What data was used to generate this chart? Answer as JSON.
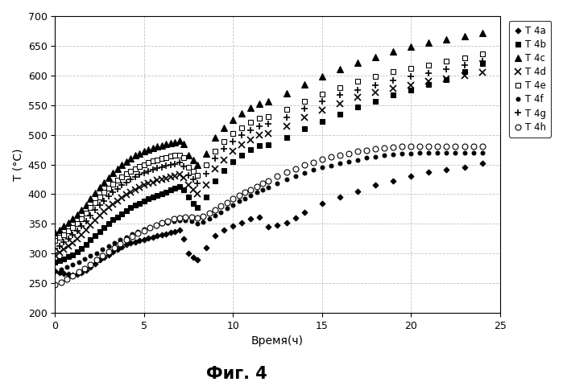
{
  "title": "Фиг. 4",
  "xlabel": "Время(ч)",
  "ylabel": "T (°C)",
  "xlim": [
    0,
    25
  ],
  "ylim": [
    200,
    700
  ],
  "xticks": [
    0,
    5,
    10,
    15,
    20,
    25
  ],
  "yticks": [
    200,
    250,
    300,
    350,
    400,
    450,
    500,
    550,
    600,
    650,
    700
  ],
  "marker_configs": {
    "T 4a": {
      "marker": "D",
      "ms": 3.5,
      "mfc": "black",
      "mec": "black",
      "mew": 0.8
    },
    "T 4b": {
      "marker": "s",
      "ms": 4.5,
      "mfc": "black",
      "mec": "black",
      "mew": 0.8
    },
    "T 4c": {
      "marker": "^",
      "ms": 5.5,
      "mfc": "black",
      "mec": "black",
      "mew": 0.8
    },
    "T 4d": {
      "marker": "x",
      "ms": 5.5,
      "mfc": "black",
      "mec": "black",
      "mew": 1.2
    },
    "T 4e": {
      "marker": "s",
      "ms": 4.5,
      "mfc": "white",
      "mec": "black",
      "mew": 0.8
    },
    "T 4f": {
      "marker": "o",
      "ms": 3.5,
      "mfc": "black",
      "mec": "black",
      "mew": 0.8
    },
    "T 4g": {
      "marker": "+",
      "ms": 6,
      "mfc": "black",
      "mec": "black",
      "mew": 1.2
    },
    "T 4h": {
      "marker": "o",
      "ms": 5,
      "mfc": "white",
      "mec": "black",
      "mew": 0.8
    }
  },
  "series": {
    "T 4a": {
      "data_x": [
        0.0,
        0.25,
        0.5,
        0.75,
        1.0,
        1.25,
        1.5,
        1.75,
        2.0,
        2.25,
        2.5,
        2.75,
        3.0,
        3.25,
        3.5,
        3.75,
        4.0,
        4.25,
        4.5,
        4.75,
        5.0,
        5.25,
        5.5,
        5.75,
        6.0,
        6.25,
        6.5,
        6.75,
        7.0,
        7.25,
        7.5,
        7.75,
        8.0,
        8.5,
        9.0,
        9.5,
        10.0,
        10.5,
        11.0,
        11.5,
        12.0,
        12.5,
        13.0,
        13.5,
        14.0,
        15.0,
        16.0,
        17.0,
        18.0,
        19.0,
        20.0,
        21.0,
        22.0,
        23.0,
        24.0
      ],
      "data_y": [
        270,
        268,
        267,
        265,
        264,
        265,
        268,
        272,
        278,
        283,
        289,
        294,
        298,
        303,
        307,
        311,
        315,
        318,
        320,
        322,
        324,
        326,
        328,
        330,
        331,
        333,
        335,
        337,
        340,
        325,
        300,
        293,
        290,
        310,
        330,
        340,
        347,
        352,
        358,
        362,
        345,
        348,
        352,
        360,
        370,
        385,
        395,
        405,
        415,
        422,
        430,
        437,
        441,
        446,
        452
      ]
    },
    "T 4b": {
      "data_x": [
        0.0,
        0.25,
        0.5,
        0.75,
        1.0,
        1.25,
        1.5,
        1.75,
        2.0,
        2.25,
        2.5,
        2.75,
        3.0,
        3.25,
        3.5,
        3.75,
        4.0,
        4.25,
        4.5,
        4.75,
        5.0,
        5.25,
        5.5,
        5.75,
        6.0,
        6.25,
        6.5,
        6.75,
        7.0,
        7.25,
        7.5,
        7.75,
        8.0,
        8.5,
        9.0,
        9.5,
        10.0,
        10.5,
        11.0,
        11.5,
        12.0,
        13.0,
        14.0,
        15.0,
        16.0,
        17.0,
        18.0,
        19.0,
        20.0,
        21.0,
        22.0,
        23.0,
        24.0
      ],
      "data_y": [
        285,
        288,
        291,
        295,
        298,
        303,
        308,
        315,
        323,
        330,
        337,
        344,
        351,
        357,
        362,
        367,
        372,
        377,
        381,
        385,
        388,
        392,
        395,
        398,
        401,
        404,
        407,
        410,
        413,
        408,
        395,
        385,
        378,
        395,
        422,
        440,
        455,
        465,
        475,
        482,
        483,
        495,
        510,
        522,
        535,
        547,
        557,
        567,
        576,
        585,
        593,
        606,
        620
      ]
    },
    "T 4c": {
      "data_x": [
        0.0,
        0.25,
        0.5,
        0.75,
        1.0,
        1.25,
        1.5,
        1.75,
        2.0,
        2.25,
        2.5,
        2.75,
        3.0,
        3.25,
        3.5,
        3.75,
        4.0,
        4.25,
        4.5,
        4.75,
        5.0,
        5.25,
        5.5,
        5.75,
        6.0,
        6.25,
        6.5,
        6.75,
        7.0,
        7.25,
        7.5,
        7.75,
        8.0,
        8.5,
        9.0,
        9.5,
        10.0,
        10.5,
        11.0,
        11.5,
        12.0,
        13.0,
        14.0,
        15.0,
        16.0,
        17.0,
        18.0,
        19.0,
        20.0,
        21.0,
        22.0,
        23.0,
        24.0
      ],
      "data_y": [
        335,
        340,
        346,
        352,
        358,
        366,
        374,
        382,
        392,
        402,
        411,
        420,
        428,
        436,
        443,
        449,
        455,
        460,
        465,
        469,
        472,
        475,
        478,
        480,
        482,
        484,
        486,
        488,
        490,
        484,
        466,
        458,
        450,
        468,
        495,
        512,
        525,
        536,
        546,
        553,
        557,
        570,
        585,
        598,
        610,
        621,
        631,
        641,
        648,
        655,
        661,
        666,
        671
      ]
    },
    "T 4d": {
      "data_x": [
        0.0,
        0.25,
        0.5,
        0.75,
        1.0,
        1.25,
        1.5,
        1.75,
        2.0,
        2.25,
        2.5,
        2.75,
        3.0,
        3.25,
        3.5,
        3.75,
        4.0,
        4.25,
        4.5,
        4.75,
        5.0,
        5.25,
        5.5,
        5.75,
        6.0,
        6.25,
        6.5,
        6.75,
        7.0,
        7.25,
        7.5,
        7.75,
        8.0,
        8.5,
        9.0,
        9.5,
        10.0,
        10.5,
        11.0,
        11.5,
        12.0,
        13.0,
        14.0,
        15.0,
        16.0,
        17.0,
        18.0,
        19.0,
        20.0,
        21.0,
        22.0,
        23.0,
        24.0
      ],
      "data_y": [
        298,
        302,
        307,
        313,
        318,
        325,
        332,
        340,
        348,
        356,
        364,
        371,
        377,
        383,
        389,
        394,
        399,
        404,
        408,
        412,
        415,
        418,
        420,
        423,
        425,
        427,
        429,
        431,
        433,
        428,
        415,
        407,
        400,
        416,
        442,
        458,
        472,
        483,
        492,
        499,
        502,
        515,
        530,
        542,
        553,
        563,
        571,
        578,
        584,
        590,
        595,
        600,
        605
      ]
    },
    "T 4e": {
      "data_x": [
        0.0,
        0.25,
        0.5,
        0.75,
        1.0,
        1.25,
        1.5,
        1.75,
        2.0,
        2.25,
        2.5,
        2.75,
        3.0,
        3.25,
        3.5,
        3.75,
        4.0,
        4.25,
        4.5,
        4.75,
        5.0,
        5.25,
        5.5,
        5.75,
        6.0,
        6.25,
        6.5,
        6.75,
        7.0,
        7.25,
        7.5,
        7.75,
        8.0,
        8.5,
        9.0,
        9.5,
        10.0,
        10.5,
        11.0,
        11.5,
        12.0,
        13.0,
        14.0,
        15.0,
        16.0,
        17.0,
        18.0,
        19.0,
        20.0,
        21.0,
        22.0,
        23.0,
        24.0
      ],
      "data_y": [
        322,
        327,
        332,
        338,
        344,
        351,
        359,
        368,
        377,
        386,
        395,
        403,
        410,
        417,
        423,
        429,
        434,
        439,
        443,
        447,
        450,
        453,
        456,
        458,
        460,
        462,
        464,
        465,
        466,
        461,
        445,
        438,
        432,
        449,
        473,
        489,
        502,
        512,
        521,
        528,
        531,
        543,
        557,
        569,
        580,
        590,
        598,
        606,
        612,
        618,
        624,
        630,
        636
      ]
    },
    "T 4f": {
      "data_x": [
        0.0,
        0.33,
        0.67,
        1.0,
        1.33,
        1.67,
        2.0,
        2.33,
        2.67,
        3.0,
        3.33,
        3.67,
        4.0,
        4.33,
        4.67,
        5.0,
        5.33,
        5.67,
        6.0,
        6.33,
        6.67,
        7.0,
        7.33,
        7.67,
        8.0,
        8.33,
        8.67,
        9.0,
        9.33,
        9.67,
        10.0,
        10.33,
        10.67,
        11.0,
        11.33,
        11.67,
        12.0,
        12.5,
        13.0,
        13.5,
        14.0,
        14.5,
        15.0,
        15.5,
        16.0,
        16.5,
        17.0,
        17.5,
        18.0,
        18.5,
        19.0,
        19.5,
        20.0,
        20.5,
        21.0,
        21.5,
        22.0,
        22.5,
        23.0,
        23.5,
        24.0
      ],
      "data_y": [
        270,
        273,
        277,
        281,
        286,
        291,
        296,
        301,
        307,
        313,
        318,
        323,
        328,
        333,
        337,
        341,
        344,
        347,
        350,
        352,
        354,
        356,
        356,
        354,
        350,
        353,
        358,
        364,
        370,
        376,
        382,
        388,
        393,
        398,
        403,
        407,
        411,
        418,
        425,
        431,
        436,
        441,
        445,
        448,
        452,
        455,
        458,
        461,
        463,
        465,
        467,
        468,
        469,
        470,
        470,
        470,
        470,
        470,
        470,
        470,
        470
      ]
    },
    "T 4g": {
      "data_x": [
        0.0,
        0.25,
        0.5,
        0.75,
        1.0,
        1.25,
        1.5,
        1.75,
        2.0,
        2.25,
        2.5,
        2.75,
        3.0,
        3.25,
        3.5,
        3.75,
        4.0,
        4.25,
        4.5,
        4.75,
        5.0,
        5.25,
        5.5,
        5.75,
        6.0,
        6.25,
        6.5,
        6.75,
        7.0,
        7.25,
        7.5,
        7.75,
        8.0,
        8.5,
        9.0,
        9.5,
        10.0,
        10.5,
        11.0,
        11.5,
        12.0,
        13.0,
        14.0,
        15.0,
        16.0,
        17.0,
        18.0,
        19.0,
        20.0,
        21.0,
        22.0,
        23.0,
        24.0
      ],
      "data_y": [
        308,
        313,
        319,
        325,
        331,
        338,
        346,
        355,
        364,
        373,
        381,
        389,
        396,
        403,
        409,
        415,
        420,
        425,
        429,
        433,
        436,
        439,
        441,
        444,
        446,
        448,
        450,
        451,
        453,
        447,
        432,
        425,
        418,
        435,
        460,
        476,
        489,
        499,
        508,
        515,
        518,
        530,
        544,
        556,
        567,
        576,
        584,
        591,
        598,
        604,
        610,
        617,
        624
      ]
    },
    "T 4h": {
      "data_x": [
        0.0,
        0.33,
        0.67,
        1.0,
        1.33,
        1.67,
        2.0,
        2.33,
        2.67,
        3.0,
        3.33,
        3.67,
        4.0,
        4.33,
        4.67,
        5.0,
        5.33,
        5.67,
        6.0,
        6.33,
        6.67,
        7.0,
        7.33,
        7.67,
        8.0,
        8.33,
        8.67,
        9.0,
        9.33,
        9.67,
        10.0,
        10.33,
        10.67,
        11.0,
        11.33,
        11.67,
        12.0,
        12.5,
        13.0,
        13.5,
        14.0,
        14.5,
        15.0,
        15.5,
        16.0,
        16.5,
        17.0,
        17.5,
        18.0,
        18.5,
        19.0,
        19.5,
        20.0,
        20.5,
        21.0,
        21.5,
        22.0,
        22.5,
        23.0,
        23.5,
        24.0
      ],
      "data_y": [
        248,
        252,
        257,
        263,
        269,
        275,
        282,
        289,
        296,
        303,
        310,
        317,
        323,
        329,
        334,
        339,
        344,
        348,
        352,
        355,
        358,
        360,
        362,
        362,
        360,
        363,
        368,
        374,
        380,
        386,
        392,
        398,
        403,
        408,
        413,
        418,
        422,
        430,
        437,
        443,
        449,
        454,
        459,
        463,
        466,
        469,
        472,
        474,
        476,
        478,
        479,
        480,
        481,
        481,
        481,
        481,
        481,
        481,
        481,
        481,
        481
      ]
    }
  },
  "legend_order": [
    "T 4a",
    "T 4b",
    "T 4c",
    "T 4d",
    "T 4e",
    "T 4f",
    "T 4g",
    "T 4h"
  ],
  "grid_color": "#bbbbbb",
  "background_color": "#ffffff"
}
